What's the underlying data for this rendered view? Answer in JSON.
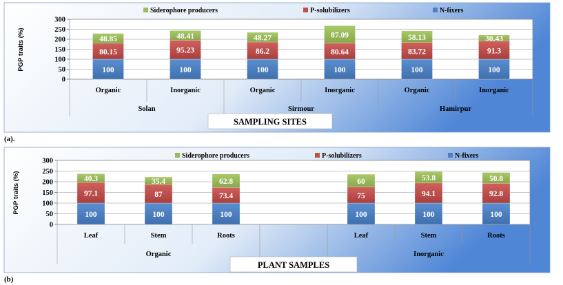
{
  "chart_data": [
    {
      "type": "bar",
      "stacked": true,
      "panel_label": "(a).",
      "ylabel": "PGP traits (%)",
      "xlabel": "SAMPLING SITES",
      "ylim": [
        0,
        300
      ],
      "yticks": [
        "0",
        "50",
        "100",
        "150",
        "200",
        "250",
        "300"
      ],
      "grid": true,
      "legend_position": "top",
      "categories": [
        "Organic",
        "Inorganic",
        "Organic",
        "Inorganic",
        "Organic",
        "Inorganic"
      ],
      "groups": [
        {
          "label": "Solan",
          "span": [
            0,
            1
          ]
        },
        {
          "label": "Sirmour",
          "span": [
            2,
            3
          ]
        },
        {
          "label": "Hamirpur",
          "span": [
            4,
            5
          ]
        }
      ],
      "series": [
        {
          "name": "N-fixers",
          "color": "#4f81bd",
          "values": [
            100,
            100,
            100,
            100,
            100,
            100
          ],
          "labels": [
            "100",
            "100",
            "100",
            "100",
            "100",
            "100"
          ]
        },
        {
          "name": "P-solubilizers",
          "color": "#c0504d",
          "values": [
            80.15,
            95.23,
            86.2,
            80.64,
            83.72,
            91.3
          ],
          "labels": [
            "80.15",
            "95.23",
            "86.2",
            "80.64",
            "83.72",
            "91.3"
          ]
        },
        {
          "name": "Siderophore producers",
          "color": "#9bbb59",
          "values": [
            48.85,
            48.41,
            48.27,
            87.09,
            58.13,
            30.43
          ],
          "labels": [
            "48.85",
            "48.41",
            "48.27",
            "87.09",
            "58.13",
            "30.43"
          ]
        }
      ]
    },
    {
      "type": "bar",
      "stacked": true,
      "panel_label": "(b)",
      "ylabel": "PGP traits (%)",
      "xlabel": "PLANT SAMPLES",
      "ylim": [
        0,
        300
      ],
      "yticks": [
        "0",
        "50",
        "100",
        "150",
        "200",
        "250",
        "300"
      ],
      "grid": true,
      "legend_position": "top",
      "categories": [
        "Leaf",
        "Stem",
        "Roots",
        "",
        "Leaf",
        "Stem",
        "Roots"
      ],
      "groups": [
        {
          "label": "Organic",
          "span": [
            0,
            2
          ]
        },
        {
          "label": "Inorganic",
          "span": [
            4,
            6
          ]
        }
      ],
      "series": [
        {
          "name": "N-fixers",
          "color": "#4f81bd",
          "values": [
            100,
            100,
            100,
            null,
            100,
            100,
            100
          ],
          "labels": [
            "100",
            "100",
            "100",
            "",
            "100",
            "100",
            "100"
          ]
        },
        {
          "name": "P-solubilizers",
          "color": "#c0504d",
          "values": [
            97.1,
            87,
            73.4,
            null,
            75,
            94.1,
            92.8
          ],
          "labels": [
            "97.1",
            "87",
            "73.4",
            "",
            "75",
            "94.1",
            "92.8"
          ]
        },
        {
          "name": "Siderophore producers",
          "color": "#9bbb59",
          "values": [
            40.3,
            35.4,
            62.8,
            null,
            60,
            53.8,
            50.8
          ],
          "labels": [
            "40.3",
            "35.4",
            "62.8",
            "",
            "60",
            "53.8",
            "50.8"
          ]
        }
      ]
    }
  ]
}
